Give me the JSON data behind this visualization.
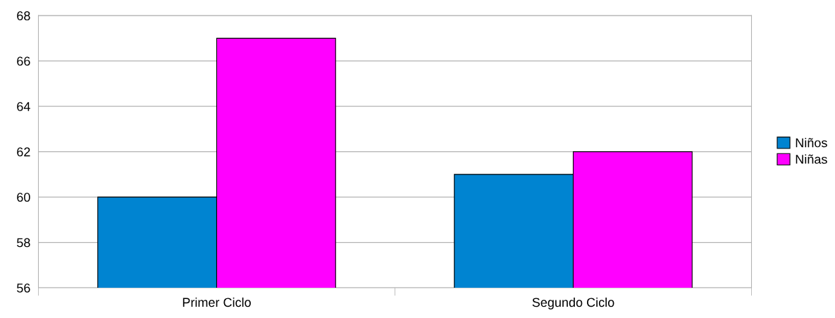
{
  "chart_data": {
    "type": "bar",
    "categories": [
      "Primer Ciclo",
      "Segundo Ciclo"
    ],
    "series": [
      {
        "name": "Niños",
        "color": "#0084d1",
        "values": [
          60,
          61
        ]
      },
      {
        "name": "Niñas",
        "color": "#ff00ff",
        "values": [
          67,
          62
        ]
      }
    ],
    "ylim": [
      56,
      68
    ],
    "yticks": [
      56,
      58,
      60,
      62,
      64,
      66,
      68
    ],
    "grid": "y",
    "legend": "right"
  }
}
